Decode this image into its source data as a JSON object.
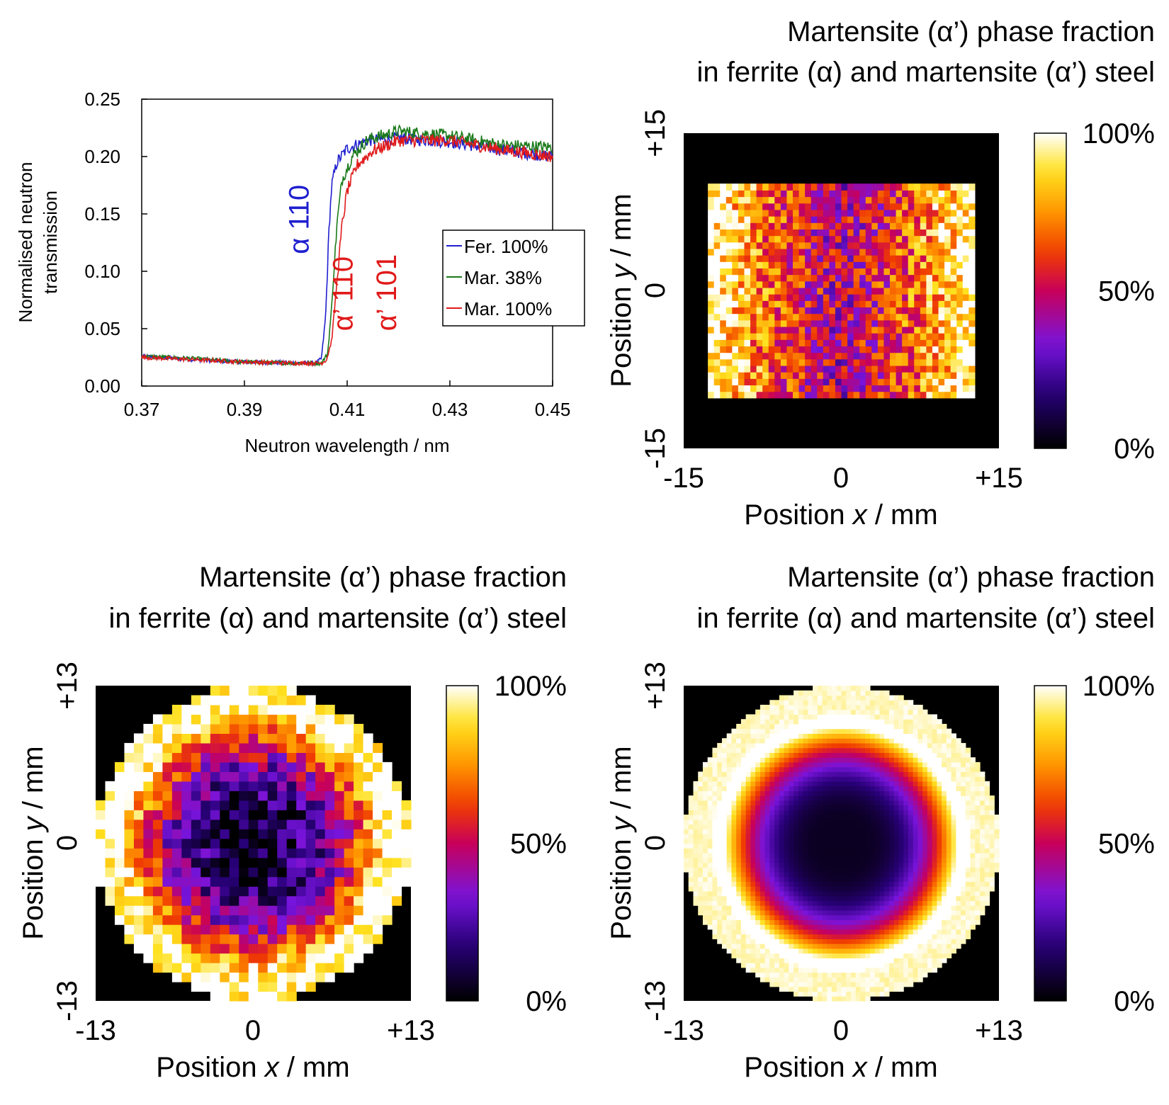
{
  "colors": {
    "ferrite": "#1f1fd0",
    "martensite38": "#1a7a1a",
    "martensite100": "#e01a1a",
    "background_mask": "#000000"
  },
  "chart_data": [
    {
      "type": "line",
      "title": "",
      "xlabel": "Neutron wavelength / nm",
      "ylabel_lines": [
        "Normalised neutron",
        "transmission"
      ],
      "xlim": [
        0.37,
        0.45
      ],
      "ylim": [
        0.0,
        0.25
      ],
      "xticks": [
        "0.37",
        "0.39",
        "0.41",
        "0.43",
        "0.45"
      ],
      "xtick_values": [
        0.37,
        0.39,
        0.41,
        0.43,
        0.45
      ],
      "yticks": [
        "0.00",
        "0.05",
        "0.10",
        "0.15",
        "0.20",
        "0.25"
      ],
      "ytick_values": [
        0.0,
        0.05,
        0.1,
        0.15,
        0.2,
        0.25
      ],
      "grid": false,
      "legend_placement": "right",
      "series": [
        {
          "name": "Fer. 100%",
          "color": "#1f1fd0",
          "x": [
            0.37,
            0.38,
            0.39,
            0.4,
            0.404,
            0.405,
            0.4058,
            0.4065,
            0.407,
            0.408,
            0.41,
            0.414,
            0.42,
            0.43,
            0.44,
            0.45
          ],
          "y": [
            0.026,
            0.023,
            0.021,
            0.02,
            0.02,
            0.024,
            0.06,
            0.14,
            0.175,
            0.195,
            0.207,
            0.214,
            0.216,
            0.213,
            0.206,
            0.2
          ]
        },
        {
          "name": "Mar. 38%",
          "color": "#1a7a1a",
          "x": [
            0.37,
            0.38,
            0.39,
            0.4,
            0.405,
            0.4062,
            0.407,
            0.408,
            0.409,
            0.411,
            0.414,
            0.42,
            0.43,
            0.44,
            0.45
          ],
          "y": [
            0.026,
            0.024,
            0.021,
            0.02,
            0.02,
            0.028,
            0.07,
            0.14,
            0.18,
            0.2,
            0.215,
            0.222,
            0.218,
            0.21,
            0.208
          ]
        },
        {
          "name": "Mar. 100%",
          "color": "#e01a1a",
          "x": [
            0.37,
            0.38,
            0.39,
            0.4,
            0.405,
            0.406,
            0.407,
            0.408,
            0.409,
            0.41,
            0.412,
            0.415,
            0.42,
            0.43,
            0.44,
            0.45
          ],
          "y": [
            0.025,
            0.023,
            0.021,
            0.02,
            0.02,
            0.023,
            0.04,
            0.09,
            0.14,
            0.17,
            0.193,
            0.205,
            0.214,
            0.214,
            0.206,
            0.2
          ]
        }
      ],
      "annotations": [
        {
          "text": "α 110",
          "color": "#1f1fd0",
          "x": 0.4025,
          "y": 0.115
        },
        {
          "text": "α’ 110",
          "color": "#e01a1a",
          "x": 0.411,
          "y": 0.048
        },
        {
          "text": "α’ 101",
          "color": "#e01a1a",
          "x": 0.4195,
          "y": 0.048
        }
      ]
    },
    {
      "type": "heatmap",
      "title_lines": [
        "Martensite (α’) phase fraction",
        "in ferrite (α) and martensite (α’) steel"
      ],
      "xlabel_prefix": "Position ",
      "xlabel_var": "x",
      "xlabel_suffix": " / mm",
      "ylabel_prefix": "Position ",
      "ylabel_var": "y",
      "ylabel_suffix": " / mm",
      "xticks": [
        "-15",
        "0",
        "+15"
      ],
      "yticks": [
        "-15",
        "0",
        "+15"
      ],
      "xlim": [
        -15,
        15
      ],
      "ylim": [
        -15,
        15
      ],
      "colorbar_ticks": [
        "0%",
        "50%",
        "100%"
      ],
      "colormap": "black-purple-red-orange-yellow-white",
      "sample_shape": "rectangle",
      "sample_extent_mm": {
        "x": [
          -12.7,
          12.7
        ],
        "y": [
          -10.2,
          10.2
        ]
      },
      "grid_cells": [
        44,
        33
      ],
      "pattern": "edges near 100%, central vertical band around 40-60% with purple pixels"
    },
    {
      "type": "heatmap",
      "title_lines": [
        "Martensite (α’) phase fraction",
        "in ferrite (α) and martensite (α’) steel"
      ],
      "xlabel_prefix": "Position ",
      "xlabel_var": "x",
      "xlabel_suffix": " / mm",
      "ylabel_prefix": "Position ",
      "ylabel_var": "y",
      "ylabel_suffix": " / mm",
      "xticks": [
        "-13",
        "0",
        "+13"
      ],
      "yticks": [
        "-13",
        "0",
        "+13"
      ],
      "xlim": [
        -13,
        13
      ],
      "ylim": [
        -13,
        13
      ],
      "colorbar_ticks": [
        "0%",
        "50%",
        "100%"
      ],
      "colormap": "black-purple-red-orange-yellow-white",
      "sample_shape": "disc",
      "sample_radius_mm": 13,
      "grid_cells": [
        33,
        33
      ],
      "pattern": "radial: ~0% at centre rising to ~100% at rim (measured, noisy)"
    },
    {
      "type": "heatmap",
      "title_lines": [
        "Martensite (α’) phase fraction",
        "in ferrite (α) and martensite (α’) steel"
      ],
      "xlabel_prefix": "Position ",
      "xlabel_var": "x",
      "xlabel_suffix": " / mm",
      "ylabel_prefix": "Position ",
      "ylabel_var": "y",
      "ylabel_suffix": " / mm",
      "xticks": [
        "-13",
        "0",
        "+13"
      ],
      "yticks": [
        "-13",
        "0",
        "+13"
      ],
      "xlim": [
        -13,
        13
      ],
      "ylim": [
        -13,
        13
      ],
      "colorbar_ticks": [
        "0%",
        "50%",
        "100%"
      ],
      "colormap": "black-purple-red-orange-yellow-white",
      "sample_shape": "disc",
      "sample_radius_mm": 13,
      "grid_cells": [
        66,
        66
      ],
      "pattern": "radial: ~5% at centre rising smoothly to ~100% at rim (smooth)"
    }
  ]
}
